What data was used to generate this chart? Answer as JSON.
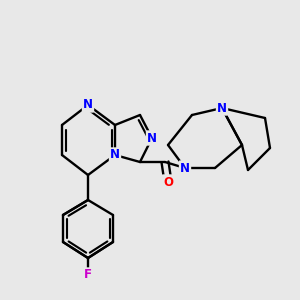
{
  "background_color": "#e8e8e8",
  "bond_color": "#000000",
  "atom_colors": {
    "N": "#0000ff",
    "O": "#ff0000",
    "F": "#cc00cc",
    "C": "#000000"
  },
  "figsize": [
    3.0,
    3.0
  ],
  "dpi": 100
}
